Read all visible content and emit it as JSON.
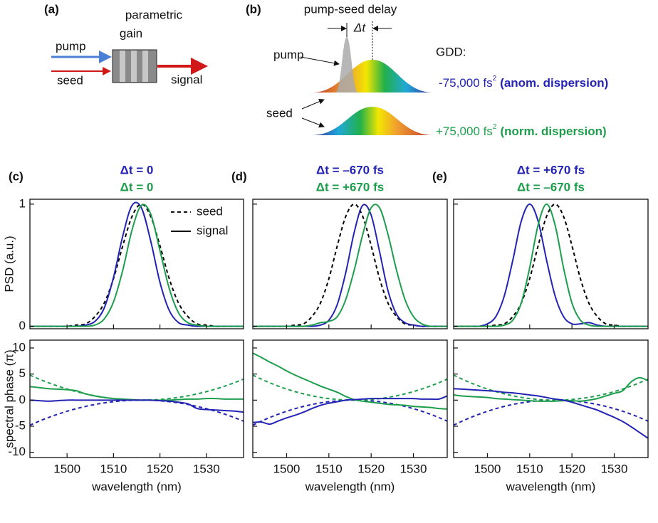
{
  "diagram": {
    "a": {
      "label": "(a)",
      "gain": [
        "parametric",
        "gain"
      ],
      "pump": "pump",
      "seed": "seed",
      "signal": "signal"
    },
    "b": {
      "label": "(b)",
      "delay": "pump-seed delay",
      "dt": "Δt",
      "pump": "pump",
      "seed": "seed",
      "gdd": "GDD:",
      "anom": {
        "value": "-75,000 fs",
        "sup": "2",
        "note": "(anom. dispersion)"
      },
      "norm": {
        "value": "+75,000 fs",
        "sup": "2",
        "note": "(norm. dispersion)"
      }
    }
  },
  "chart_data": [
    {
      "type": "line",
      "panel_label": "(c)",
      "title_lines": [
        {
          "text": "Δt = 0",
          "color": "#2424b4"
        },
        {
          "text": "Δt = 0",
          "color": "#1e9e4c"
        }
      ],
      "ylabel": "PSD (a.u.)",
      "legend": [
        {
          "label": "seed",
          "style": "dashed"
        },
        {
          "label": "signal",
          "style": "solid"
        }
      ],
      "x": [
        1492,
        1494,
        1496,
        1498,
        1500,
        1502,
        1504,
        1506,
        1508,
        1510,
        1512,
        1514,
        1516,
        1518,
        1520,
        1522,
        1524,
        1526,
        1528,
        1530,
        1532,
        1534,
        1536,
        1538
      ],
      "xlim": [
        1492,
        1538
      ],
      "xticks": [
        1500,
        1510,
        1520,
        1530
      ],
      "show_xticklabels": false,
      "ylim": [
        -0.02,
        1.04
      ],
      "yticks": [
        0,
        1
      ],
      "show_yticklabels": true,
      "series": [
        {
          "color": "#000000",
          "style": "dashed",
          "values": [
            0,
            0,
            0,
            0,
            0,
            0.01,
            0.02,
            0.08,
            0.19,
            0.39,
            0.66,
            0.9,
            1,
            0.9,
            0.66,
            0.39,
            0.19,
            0.08,
            0.02,
            0.01,
            0,
            0,
            0,
            0
          ]
        },
        {
          "color": "#2424b4",
          "style": "solid",
          "values": [
            0,
            0,
            0,
            0,
            0,
            0,
            0.01,
            0.04,
            0.15,
            0.4,
            0.74,
            0.99,
            0.97,
            0.7,
            0.36,
            0.13,
            0.03,
            0.01,
            0,
            0,
            0,
            0,
            0,
            0
          ]
        },
        {
          "color": "#1e9e4c",
          "style": "solid",
          "values": [
            0,
            0,
            0,
            0,
            0,
            0,
            0,
            0.01,
            0.06,
            0.2,
            0.46,
            0.79,
            0.99,
            0.92,
            0.62,
            0.31,
            0.11,
            0.03,
            0.01,
            0,
            0,
            0,
            0,
            0
          ]
        }
      ]
    },
    {
      "type": "line",
      "ylabel": "spectral phase (π)",
      "xlabel": "wavelength (nm)",
      "x": [
        1492,
        1494,
        1496,
        1498,
        1500,
        1502,
        1504,
        1506,
        1508,
        1510,
        1512,
        1514,
        1516,
        1518,
        1520,
        1522,
        1524,
        1526,
        1528,
        1530,
        1532,
        1534,
        1536,
        1538
      ],
      "xlim": [
        1492,
        1538
      ],
      "xticks": [
        1500,
        1510,
        1520,
        1530
      ],
      "show_xticklabels": true,
      "ylim": [
        -11,
        11.5
      ],
      "yticks": [
        -10,
        -5,
        0,
        5,
        10
      ],
      "show_yticklabels": true,
      "series": [
        {
          "color": "#2424b4",
          "style": "dashed",
          "values": [
            -4.8,
            -4.03,
            -3.33,
            -2.7,
            -2.13,
            -1.63,
            -1.2,
            -0.83,
            -0.53,
            -0.3,
            -0.13,
            -0.03,
            0,
            -0.03,
            -0.13,
            -0.3,
            -0.53,
            -0.83,
            -1.2,
            -1.63,
            -2.13,
            -2.7,
            -3.33,
            -4.03
          ]
        },
        {
          "color": "#1e9e4c",
          "style": "dashed",
          "values": [
            4.8,
            4.03,
            3.33,
            2.7,
            2.13,
            1.63,
            1.2,
            0.83,
            0.53,
            0.3,
            0.13,
            0.03,
            0,
            0.03,
            0.13,
            0.3,
            0.53,
            0.83,
            1.2,
            1.63,
            2.13,
            2.7,
            3.33,
            4.03
          ]
        },
        {
          "color": "#1e9e4c",
          "style": "solid",
          "values": [
            2.6,
            2.4,
            2.2,
            2.1,
            2.0,
            1.8,
            1.2,
            0.8,
            0.5,
            0.3,
            0.2,
            0.1,
            0,
            0,
            0,
            0,
            0.1,
            0.2,
            0.2,
            0.3,
            0.3,
            0.2,
            0.2,
            0.2
          ]
        },
        {
          "color": "#2424b4",
          "style": "solid",
          "values": [
            0,
            -0.1,
            -0.2,
            -0.1,
            0,
            0,
            0,
            0,
            0,
            0,
            0,
            0,
            0,
            0,
            -0.1,
            -0.2,
            -0.4,
            -0.7,
            -1.6,
            -1.8,
            -1.9,
            -2.0,
            -2.1,
            -2.3
          ]
        }
      ]
    },
    {
      "type": "line",
      "panel_label": "(d)",
      "title_lines": [
        {
          "text": "Δt = –670 fs",
          "color": "#2424b4"
        },
        {
          "text": "Δt = +670 fs",
          "color": "#1e9e4c"
        }
      ],
      "x": [
        1492,
        1494,
        1496,
        1498,
        1500,
        1502,
        1504,
        1506,
        1508,
        1510,
        1512,
        1514,
        1516,
        1518,
        1520,
        1522,
        1524,
        1526,
        1528,
        1530,
        1532,
        1534,
        1536,
        1538
      ],
      "xlim": [
        1492,
        1538
      ],
      "xticks": [
        1500,
        1510,
        1520,
        1530
      ],
      "show_xticklabels": false,
      "ylim": [
        -0.02,
        1.04
      ],
      "yticks": [
        0,
        1
      ],
      "show_yticklabels": false,
      "series": [
        {
          "color": "#000000",
          "style": "dashed",
          "values": [
            0,
            0,
            0,
            0,
            0,
            0.01,
            0.02,
            0.08,
            0.19,
            0.39,
            0.66,
            0.9,
            1,
            0.9,
            0.66,
            0.39,
            0.19,
            0.08,
            0.02,
            0.01,
            0,
            0,
            0,
            0
          ]
        },
        {
          "color": "#2424b4",
          "style": "solid",
          "values": [
            0,
            0,
            0,
            0,
            0,
            0,
            0,
            0,
            0.01,
            0.05,
            0.18,
            0.44,
            0.77,
            0.99,
            0.91,
            0.61,
            0.29,
            0.1,
            0.03,
            0.01,
            0,
            0,
            0,
            0
          ]
        },
        {
          "color": "#1e9e4c",
          "style": "solid",
          "values": [
            0,
            0,
            0,
            0,
            0,
            0,
            0,
            0.01,
            0.03,
            0.04,
            0.08,
            0.22,
            0.46,
            0.75,
            0.97,
            0.97,
            0.75,
            0.46,
            0.22,
            0.08,
            0.02,
            0,
            0,
            0
          ]
        }
      ]
    },
    {
      "type": "line",
      "xlabel": "wavelength (nm)",
      "x": [
        1492,
        1494,
        1496,
        1498,
        1500,
        1502,
        1504,
        1506,
        1508,
        1510,
        1512,
        1514,
        1516,
        1518,
        1520,
        1522,
        1524,
        1526,
        1528,
        1530,
        1532,
        1534,
        1536,
        1538
      ],
      "xlim": [
        1492,
        1538
      ],
      "xticks": [
        1500,
        1510,
        1520,
        1530
      ],
      "show_xticklabels": true,
      "ylim": [
        -11,
        11.5
      ],
      "yticks": [
        -10,
        -5,
        0,
        5,
        10
      ],
      "show_yticklabels": false,
      "series": [
        {
          "color": "#2424b4",
          "style": "dashed",
          "values": [
            -4.8,
            -4.03,
            -3.33,
            -2.7,
            -2.13,
            -1.63,
            -1.2,
            -0.83,
            -0.53,
            -0.3,
            -0.13,
            -0.03,
            0,
            -0.03,
            -0.13,
            -0.3,
            -0.53,
            -0.83,
            -1.2,
            -1.63,
            -2.13,
            -2.7,
            -3.33,
            -4.03
          ]
        },
        {
          "color": "#1e9e4c",
          "style": "dashed",
          "values": [
            4.8,
            4.03,
            3.33,
            2.7,
            2.13,
            1.63,
            1.2,
            0.83,
            0.53,
            0.3,
            0.13,
            0.03,
            0,
            0.03,
            0.13,
            0.3,
            0.53,
            0.83,
            1.2,
            1.63,
            2.13,
            2.7,
            3.33,
            4.03
          ]
        },
        {
          "color": "#1e9e4c",
          "style": "solid",
          "values": [
            9.0,
            8.2,
            7.3,
            6.5,
            5.6,
            4.8,
            4.1,
            3.4,
            2.7,
            2.1,
            1.5,
            0.7,
            0.1,
            -0.2,
            -0.4,
            -0.6,
            -0.8,
            -0.9,
            -1.0,
            -1.2,
            -1.3,
            -1.4,
            -1.6,
            -1.7
          ]
        },
        {
          "color": "#2424b4",
          "style": "solid",
          "values": [
            -4.3,
            -4.2,
            -4.6,
            -4.0,
            -3.4,
            -2.9,
            -2.3,
            -1.6,
            -1.0,
            -0.6,
            -0.3,
            0,
            0.1,
            0.2,
            0.3,
            0.3,
            0.3,
            0.3,
            0.3,
            0.3,
            0.2,
            0.2,
            0.2,
            0.8
          ]
        }
      ]
    },
    {
      "type": "line",
      "panel_label": "(e)",
      "title_lines": [
        {
          "text": "Δt = +670 fs",
          "color": "#2424b4"
        },
        {
          "text": "Δt = –670 fs",
          "color": "#1e9e4c"
        }
      ],
      "x": [
        1492,
        1494,
        1496,
        1498,
        1500,
        1502,
        1504,
        1506,
        1508,
        1510,
        1512,
        1514,
        1516,
        1518,
        1520,
        1522,
        1524,
        1526,
        1528,
        1530,
        1532,
        1534,
        1536,
        1538
      ],
      "xlim": [
        1492,
        1538
      ],
      "xticks": [
        1500,
        1510,
        1520,
        1530
      ],
      "show_xticklabels": false,
      "ylim": [
        -0.02,
        1.04
      ],
      "yticks": [
        0,
        1
      ],
      "show_yticklabels": false,
      "series": [
        {
          "color": "#000000",
          "style": "dashed",
          "values": [
            0,
            0,
            0,
            0,
            0,
            0.01,
            0.02,
            0.08,
            0.19,
            0.39,
            0.66,
            0.9,
            1,
            0.9,
            0.66,
            0.39,
            0.19,
            0.08,
            0.02,
            0.01,
            0,
            0,
            0,
            0
          ]
        },
        {
          "color": "#2424b4",
          "style": "solid",
          "values": [
            0,
            0,
            0,
            0,
            0.02,
            0.08,
            0.25,
            0.54,
            0.86,
            1,
            0.86,
            0.54,
            0.25,
            0.08,
            0.02,
            0.02,
            0.03,
            0.01,
            0,
            0,
            0,
            0,
            0,
            0
          ]
        },
        {
          "color": "#1e9e4c",
          "style": "solid",
          "values": [
            0,
            0,
            0,
            0,
            0,
            0,
            0.01,
            0.05,
            0.19,
            0.48,
            0.83,
            1,
            0.83,
            0.48,
            0.19,
            0.05,
            0.01,
            0,
            0,
            0,
            0,
            0,
            0,
            0
          ]
        }
      ]
    },
    {
      "type": "line",
      "xlabel": "wavelength (nm)",
      "x": [
        1492,
        1494,
        1496,
        1498,
        1500,
        1502,
        1504,
        1506,
        1508,
        1510,
        1512,
        1514,
        1516,
        1518,
        1520,
        1522,
        1524,
        1526,
        1528,
        1530,
        1532,
        1534,
        1536,
        1538
      ],
      "xlim": [
        1492,
        1538
      ],
      "xticks": [
        1500,
        1510,
        1520,
        1530
      ],
      "show_xticklabels": true,
      "ylim": [
        -11,
        11.5
      ],
      "yticks": [
        -10,
        -5,
        0,
        5,
        10
      ],
      "show_yticklabels": false,
      "series": [
        {
          "color": "#2424b4",
          "style": "dashed",
          "values": [
            -4.8,
            -4.03,
            -3.33,
            -2.7,
            -2.13,
            -1.63,
            -1.2,
            -0.83,
            -0.53,
            -0.3,
            -0.13,
            -0.03,
            0,
            -0.03,
            -0.13,
            -0.3,
            -0.53,
            -0.83,
            -1.2,
            -1.63,
            -2.13,
            -2.7,
            -3.33,
            -4.03
          ]
        },
        {
          "color": "#1e9e4c",
          "style": "dashed",
          "values": [
            4.8,
            4.03,
            3.33,
            2.7,
            2.13,
            1.63,
            1.2,
            0.83,
            0.53,
            0.3,
            0.13,
            0.03,
            0,
            0.03,
            0.13,
            0.3,
            0.53,
            0.83,
            1.2,
            1.63,
            2.13,
            2.7,
            3.33,
            4.03
          ]
        },
        {
          "color": "#1e9e4c",
          "style": "solid",
          "values": [
            1.0,
            0.8,
            0.7,
            0.6,
            0.5,
            0.3,
            0.2,
            0.1,
            0,
            -0.1,
            -0.2,
            -0.2,
            -0.2,
            -0.1,
            -0.1,
            -0.2,
            0,
            0.3,
            0.8,
            1.3,
            1.8,
            3.5,
            4.3,
            3.7
          ]
        },
        {
          "color": "#2424b4",
          "style": "solid",
          "values": [
            2.2,
            2.1,
            2.0,
            1.9,
            1.8,
            1.7,
            1.5,
            1.4,
            1.2,
            1.0,
            0.8,
            0.5,
            0.2,
            0,
            -0.4,
            -0.9,
            -1.4,
            -1.9,
            -2.6,
            -3.3,
            -4.1,
            -5.1,
            -6.2,
            -7.3
          ]
        }
      ]
    }
  ]
}
